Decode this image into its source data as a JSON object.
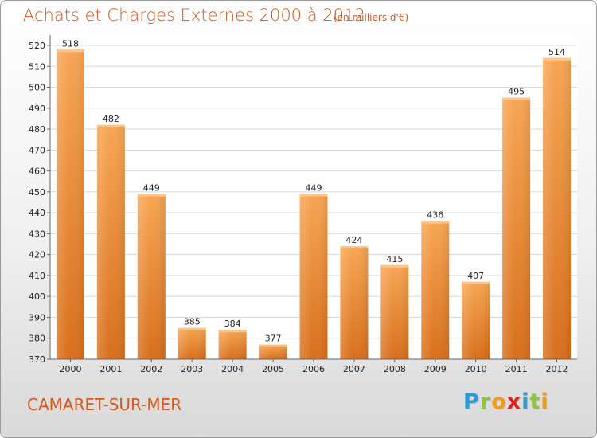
{
  "header": {
    "title": "Achats et Charges Externes 2000 à 2012",
    "subtitle": "(en milliers d'€)"
  },
  "footer": {
    "commune": "CAMARET-SUR-MER",
    "logo_letters": [
      "P",
      "r",
      "o",
      "x",
      "i",
      "t",
      "i"
    ]
  },
  "colors": {
    "bar_light": "#f7a654",
    "bar_dark": "#d86f1c",
    "text_accent": "#d2591f",
    "logo": [
      "#2f9bd6",
      "#8cc63f",
      "#f39c12",
      "#e2231a",
      "#2f9bd6",
      "#8cc63f",
      "#f39c12"
    ]
  },
  "chart_data": {
    "type": "bar",
    "title": "Achats et Charges Externes 2000 à 2012",
    "subtitle": "(en milliers d'€)",
    "xlabel": "",
    "ylabel": "",
    "categories": [
      "2000",
      "2001",
      "2002",
      "2003",
      "2004",
      "2005",
      "2006",
      "2007",
      "2008",
      "2009",
      "2010",
      "2011",
      "2012"
    ],
    "values": [
      518,
      482,
      449,
      385,
      384,
      377,
      449,
      424,
      415,
      436,
      407,
      495,
      514
    ],
    "ylim": [
      370,
      520
    ],
    "yticks": [
      370,
      380,
      390,
      400,
      410,
      420,
      430,
      440,
      450,
      460,
      470,
      480,
      490,
      500,
      510,
      520
    ],
    "grid": true,
    "legend": "none"
  }
}
